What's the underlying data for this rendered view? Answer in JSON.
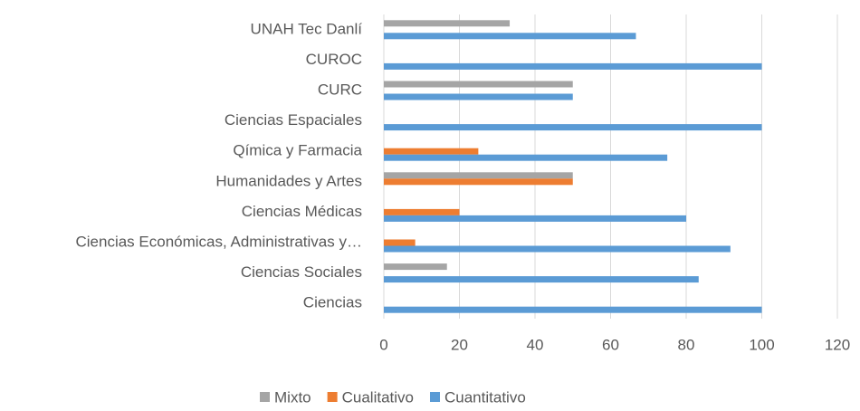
{
  "chart_data": {
    "type": "bar",
    "orientation": "horizontal",
    "categories": [
      "UNAH Tec Danlí",
      "CUROC",
      "CURC",
      "Ciencias Espaciales",
      "Qímica y Farmacia",
      "Humanidades y Artes",
      "Ciencias Médicas",
      "Ciencias Económicas, Administrativas y…",
      "Ciencias Sociales",
      "Ciencias"
    ],
    "series": [
      {
        "name": "Mixto",
        "color": "#a5a5a5",
        "values": [
          33.3,
          0,
          50,
          0,
          0,
          50,
          0,
          0,
          16.7,
          0
        ]
      },
      {
        "name": "Cualitativo",
        "color": "#ed7d31",
        "values": [
          0,
          0,
          0,
          0,
          25,
          50,
          20,
          8.3,
          0,
          0
        ]
      },
      {
        "name": "Cuantitativo",
        "color": "#5b9bd5",
        "values": [
          66.7,
          100,
          50,
          100,
          75,
          0,
          80,
          91.7,
          83.3,
          100
        ]
      }
    ],
    "xlim": [
      0,
      120
    ],
    "xticks": [
      0,
      20,
      40,
      60,
      80,
      100,
      120
    ],
    "grid": true,
    "legend": "bottom"
  }
}
